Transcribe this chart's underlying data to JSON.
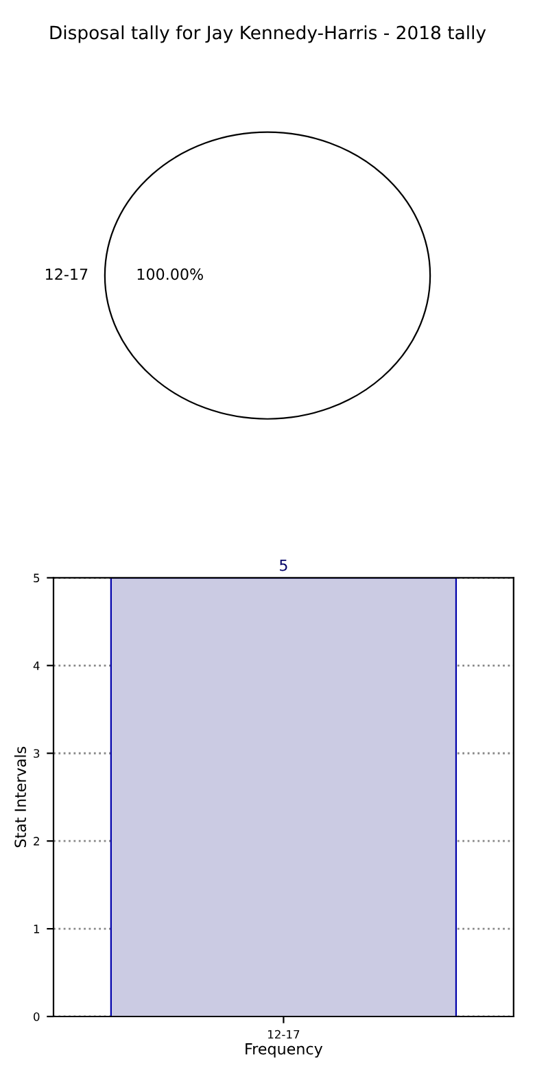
{
  "chart_data": [
    {
      "type": "pie",
      "title": "Disposal tally for Jay Kennedy-Harris - 2018 tally",
      "categories": [
        "12-17"
      ],
      "values": [
        100
      ],
      "colors": [
        "#ffffff"
      ],
      "value_labels": [
        "100.00%"
      ]
    },
    {
      "type": "bar",
      "categories": [
        "12-17"
      ],
      "values": [
        5
      ],
      "color": "#cbcbe3",
      "xlabel": "Frequency",
      "ylabel": "Stat Intervals",
      "ylim": [
        0,
        5
      ],
      "yticks": [
        0,
        1,
        2,
        3,
        4,
        5
      ],
      "grid": true,
      "data_labels": true
    }
  ]
}
